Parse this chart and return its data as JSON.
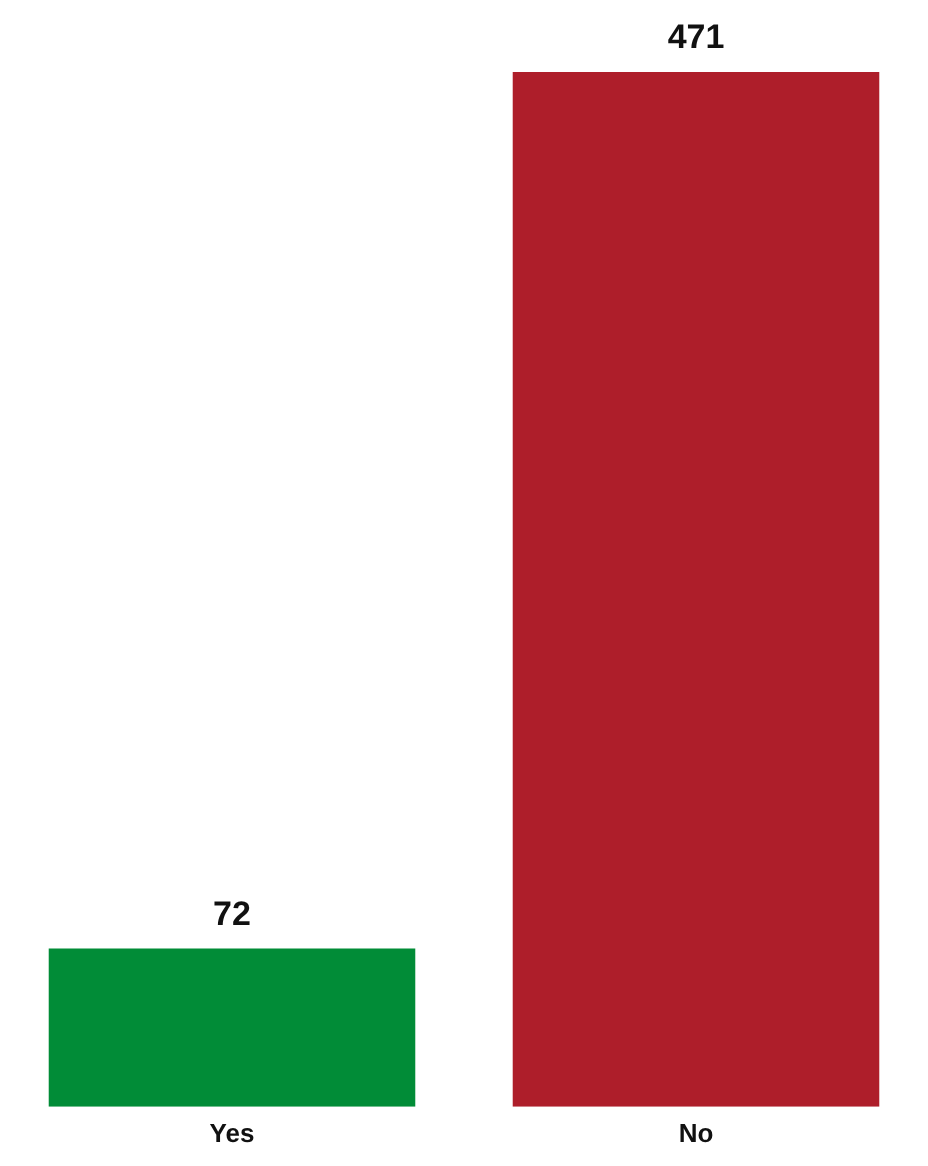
{
  "chart_data": {
    "type": "bar",
    "categories": [
      "Yes",
      "No"
    ],
    "values": [
      72,
      471
    ],
    "colors": [
      "#018c37",
      "#ae1e2a"
    ],
    "data_labels": true
  }
}
